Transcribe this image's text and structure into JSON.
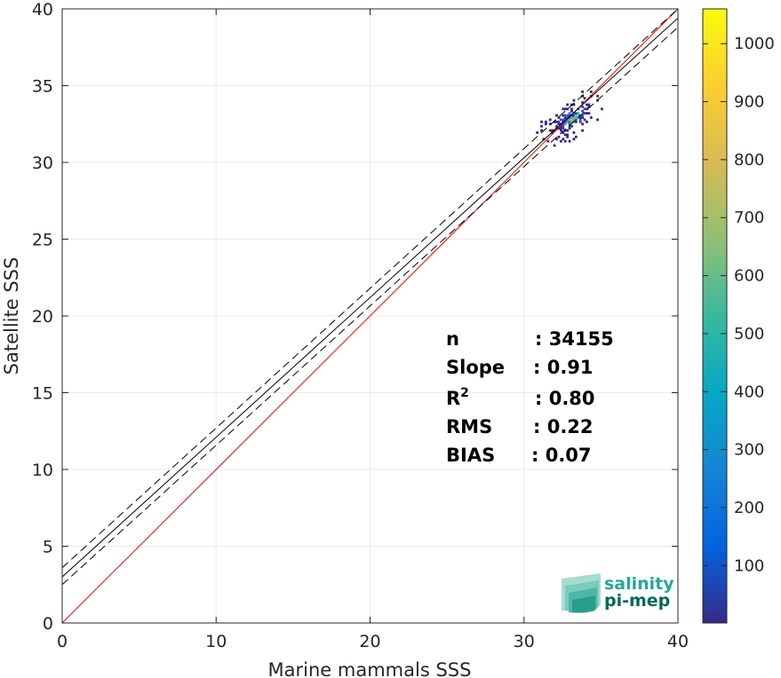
{
  "chart_data": {
    "type": "heatmap",
    "xlabel": "Marine mammals SSS",
    "ylabel": "Satellite SSS",
    "xlim": [
      0,
      40
    ],
    "ylim": [
      0,
      40
    ],
    "xticks": [
      0,
      10,
      20,
      30,
      40
    ],
    "yticks": [
      0,
      5,
      10,
      15,
      20,
      25,
      30,
      35,
      40
    ],
    "grid": true,
    "colormap": "parula",
    "colorbar": {
      "min": 1,
      "max": 1060,
      "ticks": [
        100,
        200,
        300,
        400,
        500,
        600,
        700,
        800,
        900,
        1000
      ]
    },
    "density_cluster": {
      "center_x": 33,
      "center_y": 32.8,
      "x_range": [
        30.5,
        35
      ],
      "y_range": [
        29.5,
        34.7
      ],
      "peak_count": 1060
    },
    "lines": [
      {
        "kind": "identity",
        "color": "#ff0000",
        "style": "solid",
        "points": [
          [
            0,
            0
          ],
          [
            40,
            40
          ]
        ]
      },
      {
        "kind": "regression",
        "color": "#000000",
        "style": "solid",
        "points": [
          [
            0,
            3.0
          ],
          [
            40,
            39.4
          ]
        ]
      },
      {
        "kind": "regression-upper",
        "color": "#000000",
        "style": "dashed",
        "points": [
          [
            0,
            3.6
          ],
          [
            40,
            40
          ]
        ]
      },
      {
        "kind": "regression-lower",
        "color": "#000000",
        "style": "dashed",
        "points": [
          [
            0,
            2.5
          ],
          [
            40,
            38.8
          ]
        ]
      }
    ],
    "stats": [
      {
        "label": "n",
        "value": ": 34155"
      },
      {
        "label": "Slope",
        "value": ": 0.91"
      },
      {
        "label": "R",
        "sup": "2",
        "value": ": 0.80"
      },
      {
        "label": "RMS",
        "value": ": 0.22"
      },
      {
        "label": "BIAS",
        "value": ": 0.07"
      }
    ]
  },
  "logo": {
    "line1": "salinity",
    "line2": "pi-mep",
    "color1": "#26a69a",
    "color2": "#00695c"
  },
  "colors": {
    "identity": "#ff0000",
    "regression": "#000000",
    "grid": "#ebebeb",
    "axis": "#262626"
  }
}
